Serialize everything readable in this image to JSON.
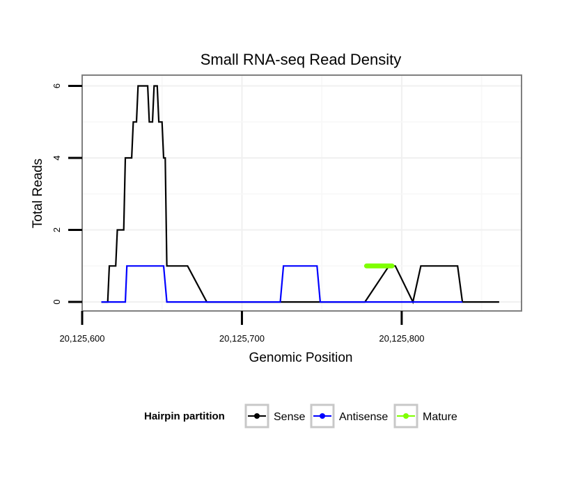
{
  "chart_data": {
    "type": "line",
    "title": "Small RNA-seq Read Density",
    "xlabel": "Genomic Position",
    "ylabel": "Total Reads",
    "xlim": [
      20125600,
      20125875
    ],
    "ylim": [
      -0.25,
      6.3
    ],
    "x_ticks": [
      20125600,
      20125700,
      20125800
    ],
    "x_tick_labels": [
      "20,125,600",
      "20,125,700",
      "20,125,800"
    ],
    "y_ticks": [
      0,
      2,
      4,
      6
    ],
    "y_tick_labels": [
      "0",
      "2",
      "4",
      "6"
    ],
    "grid": true,
    "legend_position": "bottom",
    "legend_title": "Hairpin partition",
    "series": [
      {
        "name": "Sense",
        "color": "#000000",
        "x": [
          20125612,
          20125616,
          20125617,
          20125621,
          20125622,
          20125626,
          20125627,
          20125631,
          20125632,
          20125634,
          20125635,
          20125641,
          20125642,
          20125644,
          20125645,
          20125647,
          20125648,
          20125650,
          20125651,
          20125652,
          20125653,
          20125656,
          20125666,
          20125678,
          20125752,
          20125764,
          20125775,
          20125777,
          20125792,
          20125796,
          20125807,
          20125812,
          20125835,
          20125838,
          20125861
        ],
        "y": [
          0,
          0,
          1,
          1,
          2,
          2,
          4,
          4,
          5,
          5,
          6,
          6,
          5,
          5,
          6,
          6,
          5,
          5,
          4,
          4,
          1,
          1,
          1,
          0,
          0,
          0,
          0,
          0,
          1,
          1,
          0,
          1,
          1,
          0,
          0
        ]
      },
      {
        "name": "Antisense",
        "color": "#0000ff",
        "x": [
          20125612,
          20125627,
          20125628,
          20125651,
          20125653,
          20125666,
          20125678,
          20125724,
          20125726,
          20125747,
          20125749,
          20125775,
          20125777,
          20125796,
          20125807,
          20125838
        ],
        "y": [
          0,
          0,
          1,
          1,
          0,
          0,
          0,
          0,
          1,
          1,
          0,
          0,
          0,
          0,
          0,
          0
        ]
      },
      {
        "name": "Mature",
        "color": "#7fff00",
        "x": [
          20125778,
          20125794
        ],
        "y": [
          1,
          1
        ]
      }
    ]
  }
}
